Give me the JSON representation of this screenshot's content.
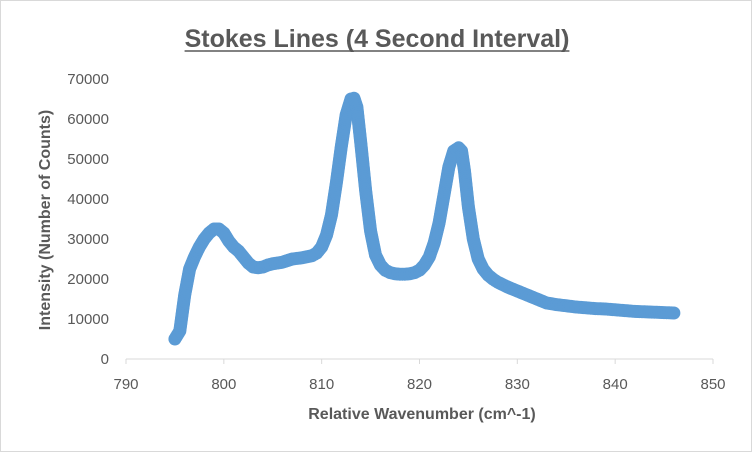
{
  "chart_data": {
    "type": "scatter",
    "title": "Stokes Lines (4 Second Interval)",
    "xlabel": "Relative Wavenumber (cm^-1)",
    "ylabel": "Intensity (Number of Counts)",
    "xlim": [
      790,
      850
    ],
    "ylim": [
      0,
      70000
    ],
    "xticks": [
      "790",
      "800",
      "810",
      "820",
      "830",
      "840",
      "850"
    ],
    "yticks": [
      "0",
      "10000",
      "20000",
      "30000",
      "40000",
      "50000",
      "60000",
      "70000"
    ],
    "grid": false,
    "legend": "none",
    "marker_color": "#5b9bd5",
    "series": [
      {
        "x": [
          795.0,
          795.5,
          796.0,
          796.5,
          797.0,
          797.5,
          798.0,
          798.5,
          799.0,
          799.5,
          800.0,
          800.5,
          801.0,
          801.5,
          802.0,
          802.5,
          803.0,
          803.5,
          804.0,
          804.5,
          805.0,
          806.0,
          807.0,
          808.0,
          809.0,
          809.5,
          810.0,
          810.5,
          811.0,
          811.5,
          812.0,
          812.5,
          813.0,
          813.3,
          813.6,
          814.0,
          814.5,
          815.0,
          815.5,
          816.0,
          816.5,
          817.0,
          817.5,
          818.0,
          818.5,
          819.0,
          819.5,
          820.0,
          820.5,
          821.0,
          821.5,
          822.0,
          822.5,
          823.0,
          823.5,
          824.0,
          824.3,
          824.6,
          825.0,
          825.5,
          826.0,
          826.5,
          827.0,
          827.5,
          828.0,
          829.0,
          830.0,
          831.0,
          832.0,
          833.0,
          834.0,
          835.0,
          836.0,
          837.0,
          838.0,
          839.0,
          840.0,
          841.0,
          842.0,
          843.0,
          844.0,
          845.0,
          846.0
        ],
        "y": [
          5000,
          7000,
          16000,
          22500,
          25500,
          28000,
          30000,
          31500,
          32500,
          32500,
          31500,
          29500,
          28000,
          27000,
          25500,
          24000,
          23000,
          22800,
          23000,
          23500,
          23800,
          24200,
          25000,
          25300,
          25800,
          26500,
          28000,
          31000,
          36000,
          44000,
          53000,
          61000,
          65000,
          65200,
          63000,
          54000,
          42000,
          32000,
          26000,
          23500,
          22200,
          21600,
          21300,
          21200,
          21200,
          21300,
          21600,
          22200,
          23500,
          25500,
          29000,
          34000,
          41000,
          48000,
          52000,
          52800,
          52000,
          47000,
          38000,
          30000,
          25000,
          22500,
          21000,
          20000,
          19200,
          18000,
          17000,
          16000,
          15000,
          14000,
          13600,
          13300,
          13000,
          12800,
          12600,
          12500,
          12300,
          12100,
          11900,
          11800,
          11700,
          11600,
          11500
        ]
      }
    ]
  }
}
